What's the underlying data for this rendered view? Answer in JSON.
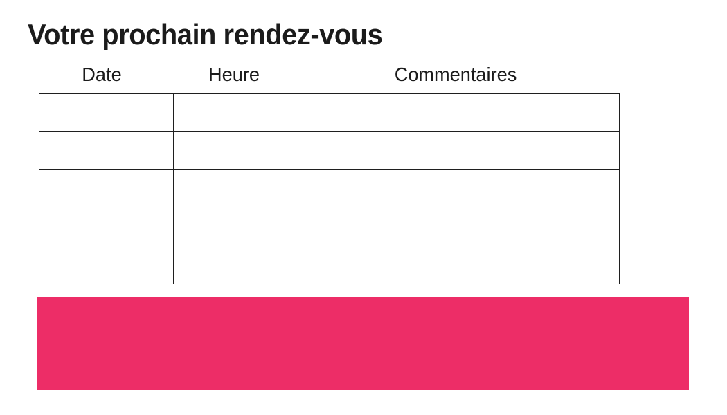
{
  "page": {
    "title": "Votre prochain rendez-vous"
  },
  "table": {
    "columns": [
      {
        "label": "Date"
      },
      {
        "label": "Heure"
      },
      {
        "label": "Commentaires"
      }
    ],
    "rows": [
      [
        "",
        "",
        ""
      ],
      [
        "",
        "",
        ""
      ],
      [
        "",
        "",
        ""
      ],
      [
        "",
        "",
        ""
      ],
      [
        "",
        "",
        ""
      ]
    ],
    "row_count": 5
  },
  "banner": {
    "text": ""
  },
  "colors": {
    "accent_pink": "#ED2D67",
    "text": "#1B1B1B",
    "table_border": "#1F1F1F",
    "background": "#FFFFFF"
  }
}
